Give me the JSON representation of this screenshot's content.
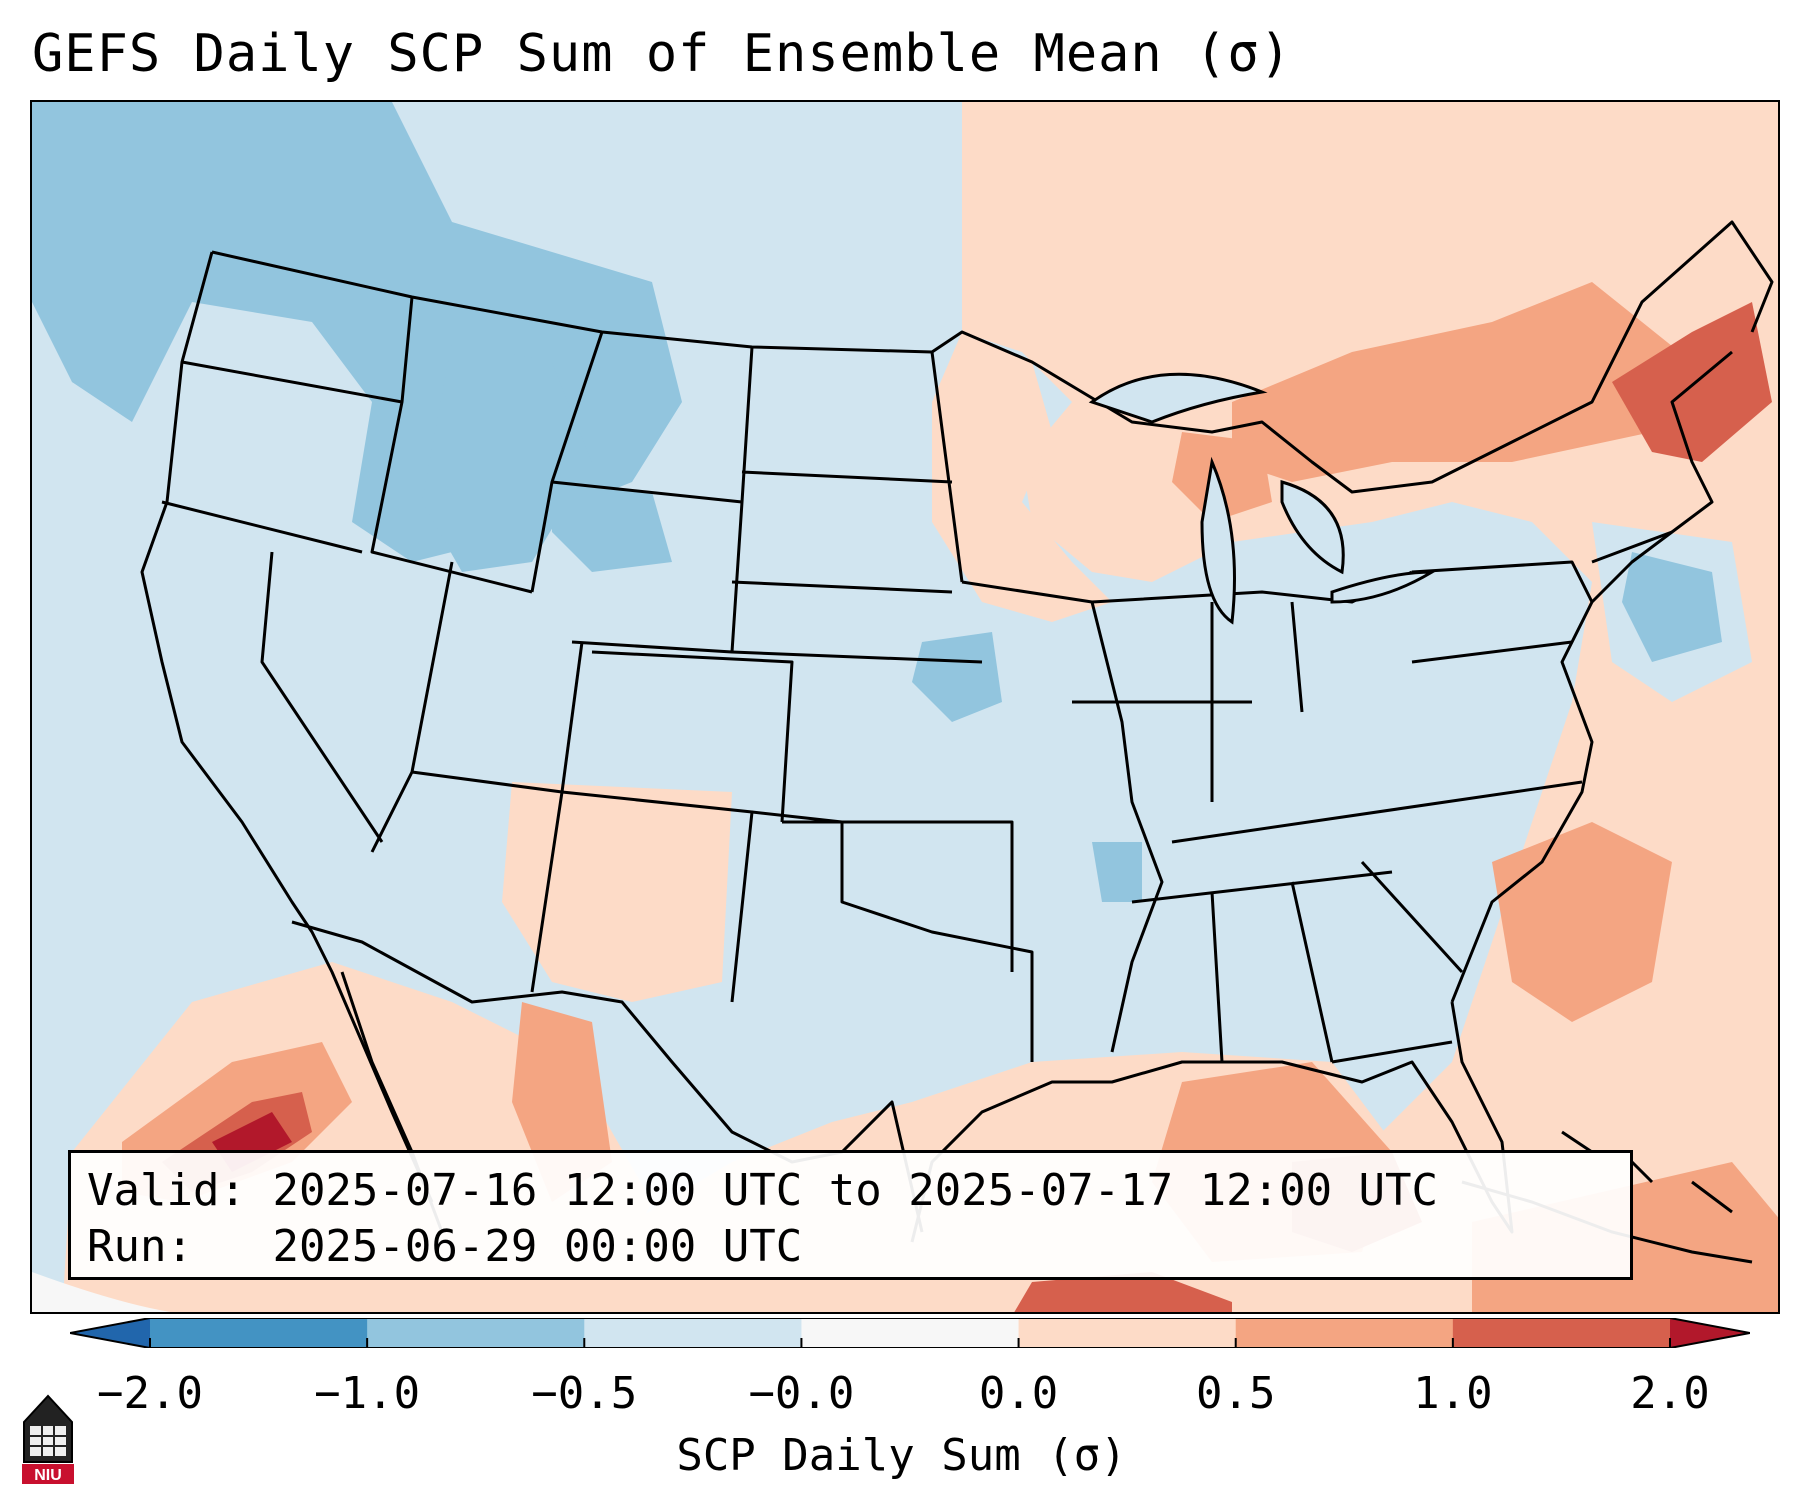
{
  "title": "GEFS Daily SCP Sum of Ensemble Mean (σ)",
  "info": {
    "valid_label": "Valid:",
    "valid_value": "2025-07-16 12:00 UTC to 2025-07-17 12:00 UTC",
    "run_label": "Run:",
    "run_value": "2025-06-29 00:00 UTC"
  },
  "colorbar": {
    "label": "SCP Daily Sum (σ)",
    "ticks": [
      "−2.0",
      "−1.0",
      "−0.5",
      "−0.0",
      "0.0",
      "0.5",
      "1.0",
      "2.0"
    ],
    "colors": [
      "#4393c3",
      "#92c5de",
      "#d1e5f0",
      "#f7f7f7",
      "#fddbc7",
      "#f4a582",
      "#d6604d"
    ],
    "extend_low_color": "#2166ac",
    "extend_high_color": "#b2182b"
  },
  "map": {
    "region": "Contiguous United States",
    "background_color": "#d1e5f0",
    "ocean_color": "#fddbc7",
    "border_color": "#000000"
  },
  "logo": {
    "text": "NIU",
    "color": "#c8102e"
  }
}
